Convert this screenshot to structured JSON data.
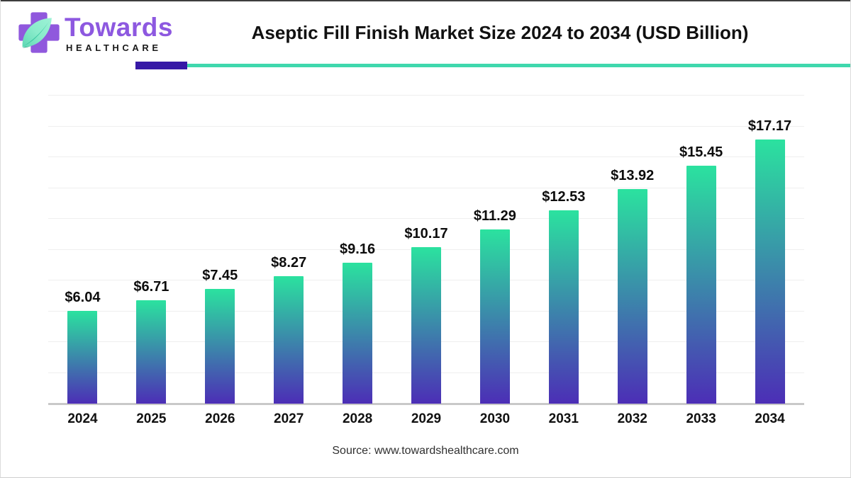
{
  "header": {
    "brand": "Towards",
    "brand_sub": "HEALTHCARE",
    "title": "Aseptic Fill Finish Market Size 2024 to 2034 (USD Billion)"
  },
  "divider": {
    "accent_color": "#3719a6",
    "line_color": "#3fd8ad"
  },
  "chart_data": {
    "type": "bar",
    "title": "Aseptic Fill Finish Market Size 2024 to 2034 (USD Billion)",
    "categories": [
      "2024",
      "2025",
      "2026",
      "2027",
      "2028",
      "2029",
      "2030",
      "2031",
      "2032",
      "2033",
      "2034"
    ],
    "values": [
      6.04,
      6.71,
      7.45,
      8.27,
      9.16,
      10.17,
      11.29,
      12.53,
      13.92,
      15.45,
      17.17
    ],
    "value_labels": [
      "$6.04",
      "$6.71",
      "$7.45",
      "$8.27",
      "$9.16",
      "$10.17",
      "$11.29",
      "$12.53",
      "$13.92",
      "$15.45",
      "$17.17"
    ],
    "xlabel": "",
    "ylabel": "",
    "ylim": [
      0,
      20
    ],
    "gridline_step": 2,
    "grid": true,
    "legend": "none",
    "bar_color_top": "#2be29f",
    "bar_color_bottom": "#4c2eb6"
  },
  "footer": {
    "source": "Source: www.towardshealthcare.com"
  },
  "colors": {
    "logo_purple": "#8d58e0",
    "leaf_light": "#8aeccb",
    "leaf_dark": "#2fbf9b",
    "title_text": "#111111",
    "grid": "#efefef",
    "axis_line": "#c9c9c9"
  }
}
